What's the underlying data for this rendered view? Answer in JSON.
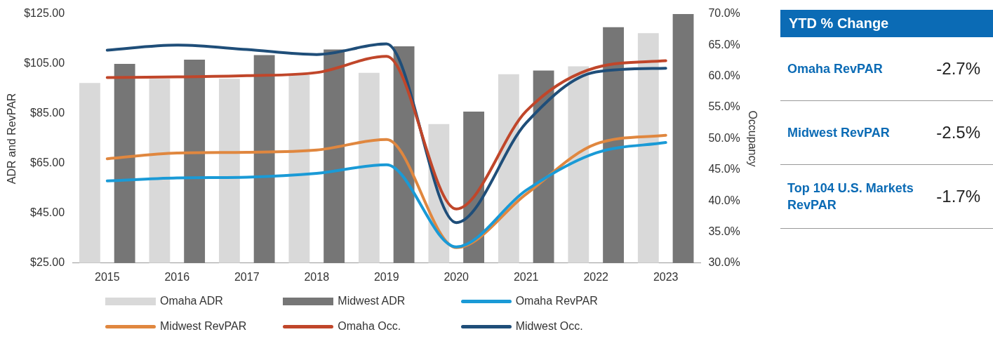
{
  "chart_data": {
    "type": "bar",
    "categories": [
      "2015",
      "2016",
      "2017",
      "2018",
      "2019",
      "2020",
      "2021",
      "2022",
      "2023"
    ],
    "ylabel": "ADR and RevPAR",
    "y2label": "Occupancy",
    "ylim": [
      25,
      125
    ],
    "yticks": [
      {
        "value": 25,
        "label": "$25.00"
      },
      {
        "value": 45,
        "label": "$45.00"
      },
      {
        "value": 65,
        "label": "$65.00"
      },
      {
        "value": 85,
        "label": "$85.00"
      },
      {
        "value": 105,
        "label": "$105.00"
      },
      {
        "value": 125,
        "label": "$125.00"
      }
    ],
    "y2lim": [
      30,
      70
    ],
    "y2ticks": [
      {
        "value": 30,
        "label": "30.0%"
      },
      {
        "value": 35,
        "label": "35.0%"
      },
      {
        "value": 40,
        "label": "40.0%"
      },
      {
        "value": 45,
        "label": "45.0%"
      },
      {
        "value": 50,
        "label": "50.0%"
      },
      {
        "value": 55,
        "label": "55.0%"
      },
      {
        "value": 60,
        "label": "60.0%"
      },
      {
        "value": 65,
        "label": "65.0%"
      },
      {
        "value": 70,
        "label": "70.0%"
      }
    ],
    "series": [
      {
        "name": "Omaha ADR",
        "color": "#d9d9d9",
        "values": [
          97.3,
          99,
          99,
          100.5,
          101.4,
          80.8,
          100.8,
          104,
          117.3
        ]
      },
      {
        "name": "Midwest ADR",
        "color": "#767676",
        "values": [
          105,
          106.7,
          108.5,
          110.8,
          112,
          85.8,
          102.3,
          119.7,
          125
        ]
      },
      {
        "name": "Omaha RevPAR",
        "type": "line",
        "color": "#1a9ad6",
        "values": [
          58,
          59.2,
          59.5,
          61,
          64.5,
          31.5,
          54.2,
          69.2,
          73.4
        ]
      },
      {
        "name": "Midwest RevPAR",
        "type": "line",
        "color": "#e0873f",
        "values": [
          66.9,
          69.2,
          69.5,
          70.4,
          74.6,
          31.2,
          52.7,
          72.8,
          76.3
        ]
      },
      {
        "name": "Omaha Occ.",
        "type": "line",
        "axis": "y2",
        "color": "#c0462a",
        "values": [
          59.8,
          59.9,
          60.1,
          60.6,
          63.2,
          38.7,
          54.4,
          61.4,
          62.5
        ]
      },
      {
        "name": "Midwest Occ.",
        "type": "line",
        "axis": "y2",
        "color": "#1f4e79",
        "values": [
          64.2,
          65,
          64.3,
          63.5,
          65.2,
          36.5,
          52.5,
          60.7,
          61.3
        ]
      }
    ],
    "legend": "bottom",
    "grid": false,
    "marker": "none",
    "line_style": "solid",
    "annotations": [
      "YTD % Change",
      "Omaha RevPAR",
      "-2.7%",
      "Midwest RevPAR",
      "-2.5%",
      "Top 104 U.S. Markets RevPAR",
      "-1.7%"
    ]
  }
}
